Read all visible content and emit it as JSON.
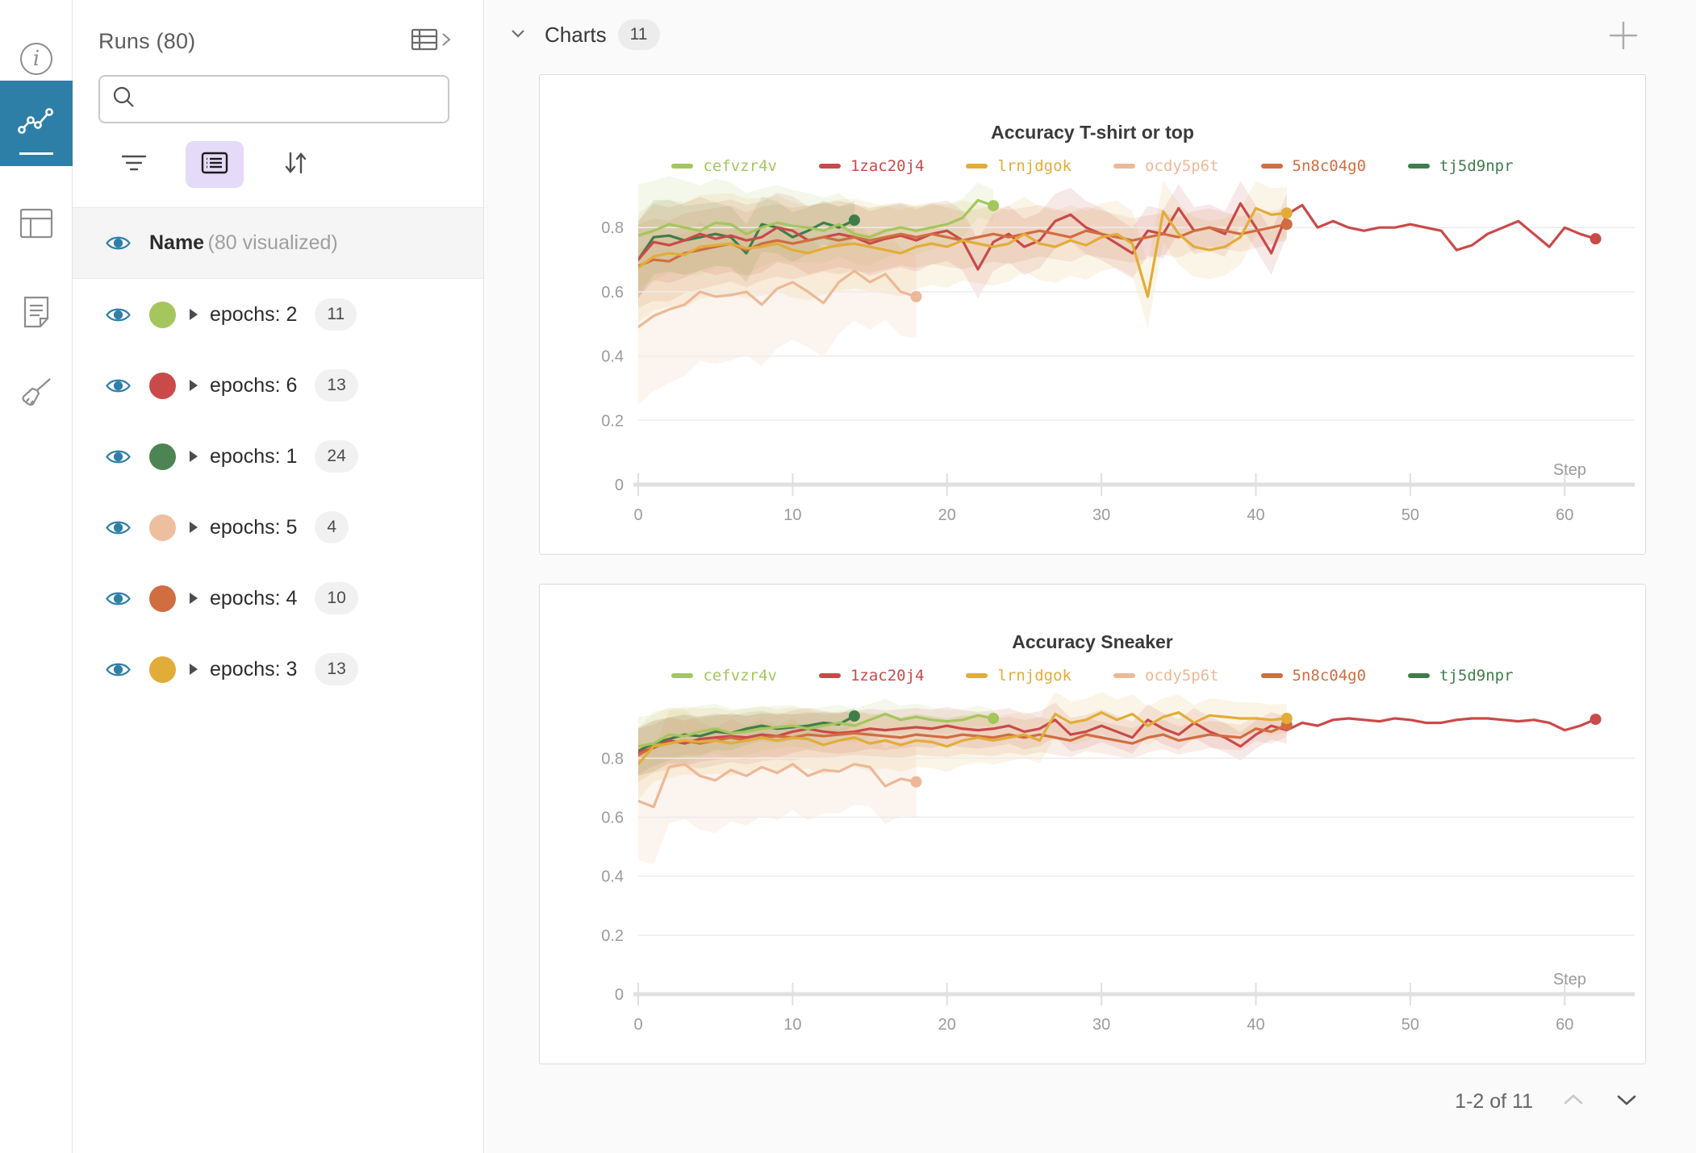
{
  "rail": {
    "items": [
      {
        "id": "info",
        "icon": "info-icon",
        "selected": false
      },
      {
        "id": "charts",
        "icon": "line-chart-icon",
        "selected": true
      },
      {
        "id": "panels",
        "icon": "table-layout-icon",
        "selected": false
      },
      {
        "id": "notes",
        "icon": "notes-icon",
        "selected": false
      },
      {
        "id": "sweep",
        "icon": "broom-icon",
        "selected": false
      }
    ]
  },
  "sidebar": {
    "title": "Runs (80)",
    "search": {
      "value": "",
      "placeholder": ""
    },
    "visualized": {
      "label": "Name",
      "sub": "(80 visualized)"
    },
    "runs": [
      {
        "label": "epochs: 2",
        "count": "11",
        "color": "#a4c65c"
      },
      {
        "label": "epochs: 6",
        "count": "13",
        "color": "#c94a49"
      },
      {
        "label": "epochs: 1",
        "count": "24",
        "color": "#4e8353"
      },
      {
        "label": "epochs: 5",
        "count": "4",
        "color": "#edbf9f"
      },
      {
        "label": "epochs: 4",
        "count": "10",
        "color": "#d06d41"
      },
      {
        "label": "epochs: 3",
        "count": "13",
        "color": "#e2ac38"
      }
    ]
  },
  "header": {
    "title": "Charts",
    "count": "11"
  },
  "pagination": {
    "label": "1-2 of 11"
  },
  "colors": {
    "accent_blue": "#2e7fa7",
    "active_pill": "#e5dbf8",
    "grid": "#ececec",
    "axis": "#e0e0e0",
    "tick_text": "#9b9b9b"
  },
  "chart_data": [
    {
      "type": "line",
      "title": "Accuracy T-shirt or top",
      "xlabel": "Step",
      "x_ticks": [
        0,
        10,
        20,
        30,
        40,
        50,
        60
      ],
      "y_ticks": [
        {
          "v": 0,
          "label": "0"
        },
        {
          "v": 0.2,
          "label": "0.2"
        },
        {
          "v": 0.4,
          "label": "0.4"
        },
        {
          "v": 0.6,
          "label": "0.6"
        },
        {
          "v": 0.8,
          "label": "0.8"
        }
      ],
      "ylim": [
        0,
        1.05
      ],
      "xlim": [
        0,
        64
      ],
      "legend_position": "top-center",
      "grid": true,
      "series": [
        {
          "name": "cefvzr4v",
          "color": "#a4c65c",
          "z": 5,
          "band": [
            0.16,
            0.05
          ],
          "end_dot": true,
          "values": [
            0.775,
            0.79,
            0.81,
            0.8,
            0.79,
            0.815,
            0.81,
            0.78,
            0.8,
            0.815,
            0.805,
            0.8,
            0.79,
            0.81,
            0.78,
            0.77,
            0.79,
            0.8,
            0.79,
            0.8,
            0.81,
            0.83,
            0.885,
            0.868
          ]
        },
        {
          "name": "1zac20j4",
          "color": "#c94a49",
          "z": 2,
          "band": [
            0.12,
            0.04
          ],
          "band_until": 43,
          "end_dot": true,
          "values": [
            0.7,
            0.755,
            0.745,
            0.76,
            0.78,
            0.765,
            0.775,
            0.76,
            0.77,
            0.8,
            0.79,
            0.76,
            0.77,
            0.78,
            0.77,
            0.75,
            0.765,
            0.775,
            0.76,
            0.78,
            0.79,
            0.76,
            0.67,
            0.755,
            0.78,
            0.74,
            0.76,
            0.82,
            0.84,
            0.8,
            0.78,
            0.75,
            0.72,
            0.79,
            0.78,
            0.86,
            0.79,
            0.8,
            0.78,
            0.875,
            0.8,
            0.72,
            0.84,
            0.87,
            0.8,
            0.82,
            0.8,
            0.79,
            0.8,
            0.8,
            0.81,
            0.8,
            0.79,
            0.73,
            0.745,
            0.78,
            0.8,
            0.82,
            0.78,
            0.74,
            0.8,
            0.78,
            0.765
          ]
        },
        {
          "name": "lrnjdgok",
          "color": "#e2ac38",
          "z": 4,
          "band": [
            0.17,
            0.08
          ],
          "end_dot": true,
          "values": [
            0.675,
            0.71,
            0.72,
            0.715,
            0.74,
            0.745,
            0.75,
            0.735,
            0.74,
            0.75,
            0.73,
            0.72,
            0.735,
            0.745,
            0.75,
            0.74,
            0.73,
            0.72,
            0.74,
            0.75,
            0.74,
            0.76,
            0.75,
            0.74,
            0.75,
            0.78,
            0.75,
            0.74,
            0.76,
            0.745,
            0.77,
            0.78,
            0.75,
            0.585,
            0.85,
            0.78,
            0.74,
            0.73,
            0.74,
            0.77,
            0.86,
            0.84,
            0.845
          ]
        },
        {
          "name": "ocdy5p6t",
          "color": "#ecb897",
          "z": 0,
          "band": [
            0.24,
            0.13
          ],
          "band_opacity": 0.16,
          "end_dot": true,
          "values": [
            0.49,
            0.525,
            0.545,
            0.56,
            0.6,
            0.585,
            0.59,
            0.6,
            0.56,
            0.61,
            0.63,
            0.6,
            0.565,
            0.63,
            0.665,
            0.63,
            0.655,
            0.6,
            0.585
          ]
        },
        {
          "name": "5n8c04g0",
          "color": "#d06d41",
          "z": 3,
          "band": [
            0.13,
            0.05
          ],
          "end_dot": true,
          "values": [
            0.68,
            0.7,
            0.695,
            0.72,
            0.73,
            0.74,
            0.75,
            0.73,
            0.75,
            0.76,
            0.75,
            0.76,
            0.77,
            0.76,
            0.77,
            0.76,
            0.77,
            0.78,
            0.77,
            0.78,
            0.77,
            0.76,
            0.77,
            0.78,
            0.77,
            0.78,
            0.79,
            0.78,
            0.77,
            0.79,
            0.78,
            0.77,
            0.76,
            0.77,
            0.78,
            0.77,
            0.79,
            0.8,
            0.79,
            0.78,
            0.79,
            0.8,
            0.81
          ]
        },
        {
          "name": "tj5d9npr",
          "color": "#3f7d4b",
          "z": 1,
          "band": [
            0.12,
            0.06
          ],
          "end_dot": true,
          "values": [
            0.7,
            0.77,
            0.775,
            0.76,
            0.77,
            0.78,
            0.77,
            0.72,
            0.81,
            0.8,
            0.77,
            0.79,
            0.815,
            0.8,
            0.823
          ]
        }
      ]
    },
    {
      "type": "line",
      "title": "Accuracy Sneaker",
      "xlabel": "Step",
      "x_ticks": [
        0,
        10,
        20,
        30,
        40,
        50,
        60
      ],
      "y_ticks": [
        {
          "v": 0,
          "label": "0"
        },
        {
          "v": 0.2,
          "label": "0.2"
        },
        {
          "v": 0.4,
          "label": "0.4"
        },
        {
          "v": 0.6,
          "label": "0.6"
        },
        {
          "v": 0.8,
          "label": "0.8"
        }
      ],
      "ylim": [
        0,
        1.15
      ],
      "xlim": [
        0,
        64
      ],
      "legend_position": "top-center",
      "grid": true,
      "series": [
        {
          "name": "cefvzr4v",
          "color": "#a4c65c",
          "z": 5,
          "band": [
            0.1,
            0.03
          ],
          "end_dot": true,
          "values": [
            0.84,
            0.85,
            0.88,
            0.875,
            0.89,
            0.9,
            0.885,
            0.89,
            0.9,
            0.905,
            0.91,
            0.9,
            0.91,
            0.92,
            0.91,
            0.93,
            0.95,
            0.93,
            0.94,
            0.93,
            0.925,
            0.93,
            0.945,
            0.935
          ]
        },
        {
          "name": "1zac20j4",
          "color": "#c94a49",
          "z": 2,
          "band": [
            0.08,
            0.03
          ],
          "band_until": 43,
          "end_dot": true,
          "values": [
            0.82,
            0.835,
            0.86,
            0.85,
            0.865,
            0.87,
            0.875,
            0.87,
            0.88,
            0.875,
            0.89,
            0.9,
            0.89,
            0.885,
            0.89,
            0.9,
            0.895,
            0.9,
            0.905,
            0.9,
            0.91,
            0.9,
            0.895,
            0.9,
            0.91,
            0.89,
            0.9,
            0.93,
            0.88,
            0.89,
            0.91,
            0.89,
            0.87,
            0.93,
            0.9,
            0.88,
            0.92,
            0.89,
            0.87,
            0.84,
            0.88,
            0.91,
            0.895,
            0.92,
            0.91,
            0.93,
            0.935,
            0.93,
            0.925,
            0.935,
            0.93,
            0.92,
            0.92,
            0.93,
            0.935,
            0.935,
            0.93,
            0.925,
            0.93,
            0.92,
            0.895,
            0.91,
            0.932
          ]
        },
        {
          "name": "lrnjdgok",
          "color": "#e2ac38",
          "z": 4,
          "band": [
            0.12,
            0.05
          ],
          "end_dot": true,
          "values": [
            0.78,
            0.84,
            0.85,
            0.86,
            0.855,
            0.86,
            0.85,
            0.86,
            0.87,
            0.86,
            0.87,
            0.865,
            0.845,
            0.86,
            0.87,
            0.85,
            0.86,
            0.845,
            0.86,
            0.855,
            0.84,
            0.86,
            0.87,
            0.86,
            0.87,
            0.88,
            0.86,
            0.95,
            0.92,
            0.93,
            0.955,
            0.93,
            0.95,
            0.91,
            0.94,
            0.955,
            0.92,
            0.945,
            0.94,
            0.935,
            0.935,
            0.93,
            0.935
          ]
        },
        {
          "name": "ocdy5p6t",
          "color": "#ecb897",
          "z": 0,
          "band": [
            0.2,
            0.12
          ],
          "band_opacity": 0.16,
          "end_dot": true,
          "values": [
            0.655,
            0.635,
            0.77,
            0.78,
            0.74,
            0.725,
            0.76,
            0.74,
            0.77,
            0.75,
            0.78,
            0.74,
            0.76,
            0.755,
            0.78,
            0.77,
            0.705,
            0.73,
            0.72
          ]
        },
        {
          "name": "5n8c04g0",
          "color": "#d06d41",
          "z": 3,
          "band": [
            0.09,
            0.04
          ],
          "end_dot": true,
          "values": [
            0.81,
            0.84,
            0.85,
            0.86,
            0.85,
            0.86,
            0.87,
            0.86,
            0.87,
            0.875,
            0.87,
            0.88,
            0.875,
            0.88,
            0.885,
            0.88,
            0.875,
            0.87,
            0.88,
            0.875,
            0.87,
            0.88,
            0.875,
            0.87,
            0.88,
            0.87,
            0.88,
            0.87,
            0.86,
            0.88,
            0.87,
            0.86,
            0.85,
            0.87,
            0.88,
            0.86,
            0.87,
            0.88,
            0.875,
            0.87,
            0.9,
            0.89,
            0.913
          ]
        },
        {
          "name": "tj5d9npr",
          "color": "#3f7d4b",
          "z": 1,
          "band": [
            0.08,
            0.03
          ],
          "end_dot": true,
          "values": [
            0.825,
            0.85,
            0.865,
            0.88,
            0.875,
            0.89,
            0.885,
            0.9,
            0.91,
            0.9,
            0.905,
            0.91,
            0.92,
            0.915,
            0.943
          ]
        }
      ]
    }
  ]
}
